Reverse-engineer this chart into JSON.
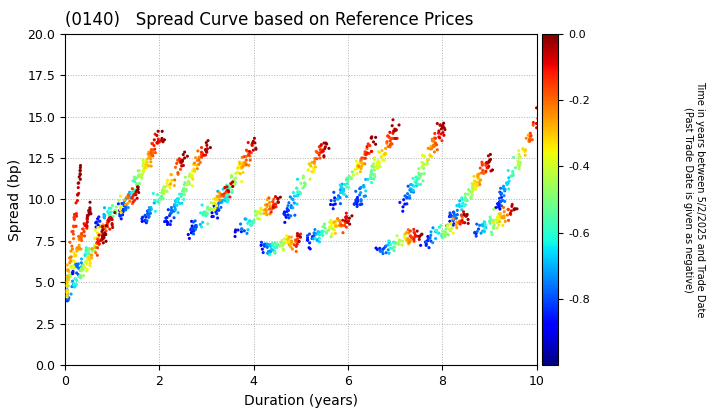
{
  "title": "(0140)   Spread Curve based on Reference Prices",
  "xlabel": "Duration (years)",
  "ylabel": "Spread (bp)",
  "colorbar_label_line1": "Time in years between 5/2/2025 and Trade Date",
  "colorbar_label_line2": "(Past Trade Date is given as negative)",
  "xlim": [
    0,
    10
  ],
  "ylim": [
    0,
    20
  ],
  "yticks": [
    0.0,
    2.5,
    5.0,
    7.5,
    10.0,
    12.5,
    15.0,
    17.5,
    20.0
  ],
  "xticks": [
    0,
    2,
    4,
    6,
    8,
    10
  ],
  "color_vmin": -1.0,
  "color_vmax": 0.0,
  "bg_color": "#ffffff",
  "grid_color": "#b0b0b0",
  "dot_size": 5,
  "seed": 42
}
